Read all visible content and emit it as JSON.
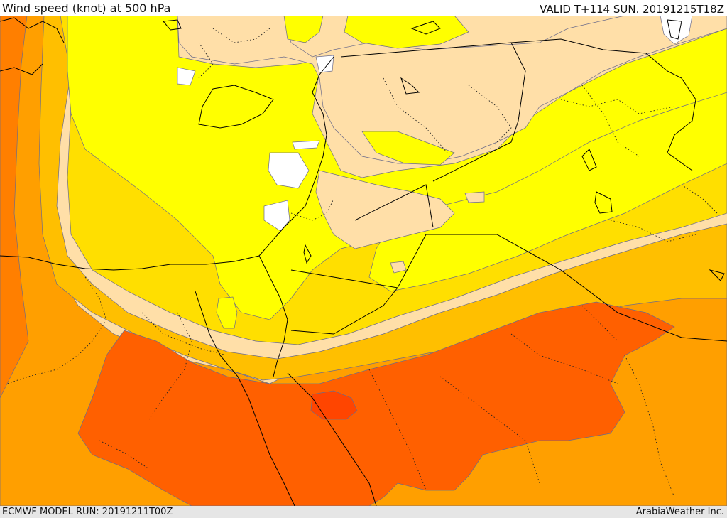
{
  "header": {
    "title": "Wind speed (knot) at 500 hPa",
    "valid": "VALID T+114 SUN. 20191215T18Z"
  },
  "footer": {
    "model_run": "ECMWF MODEL RUN: 20191211T00Z",
    "credit": "ArabiaWeather Inc."
  },
  "map": {
    "field": "wind speed",
    "level": "500 hPa",
    "colors": {
      "white": "#ffffff",
      "wheat": "#ffdfa8",
      "yellow": "#ffff00",
      "gold": "#ffdf00",
      "amber": "#ffbf00",
      "orange": "#ff9f00",
      "dark_orange": "#ff7f00",
      "red_orange": "#ff6000",
      "red": "#ff4500"
    }
  }
}
